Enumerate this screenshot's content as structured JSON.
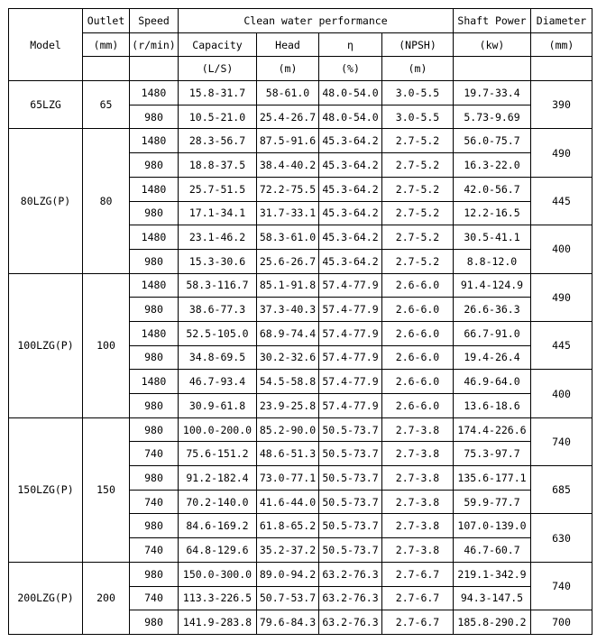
{
  "header": {
    "model": "Model",
    "outlet": "Outlet",
    "outlet_unit": "(mm)",
    "speed": "Speed",
    "speed_unit": "(r/min)",
    "performance": "Clean water performance",
    "capacity": "Capacity",
    "capacity_unit": "(L/S)",
    "head": "Head",
    "head_unit": "(m)",
    "eta": "η",
    "eta_unit": "(%)",
    "npsh": "(NPSH)",
    "npsh_unit": "(m)",
    "power": "Shaft Power",
    "power_unit": "(kw)",
    "diameter": "Diameter",
    "diameter_unit": "(mm)"
  },
  "models": [
    {
      "model": "65LZG",
      "outlet": "65",
      "groups": [
        {
          "diameter": "390",
          "rows": [
            [
              "1480",
              "15.8-31.7",
              "58-61.0",
              "48.0-54.0",
              "3.0-5.5",
              "19.7-33.4"
            ],
            [
              "980",
              "10.5-21.0",
              "25.4-26.7",
              "48.0-54.0",
              "3.0-5.5",
              "5.73-9.69"
            ]
          ]
        }
      ]
    },
    {
      "model": "80LZG(P)",
      "outlet": "80",
      "groups": [
        {
          "diameter": "490",
          "rows": [
            [
              "1480",
              "28.3-56.7",
              "87.5-91.6",
              "45.3-64.2",
              "2.7-5.2",
              "56.0-75.7"
            ],
            [
              "980",
              "18.8-37.5",
              "38.4-40.2",
              "45.3-64.2",
              "2.7-5.2",
              "16.3-22.0"
            ]
          ]
        },
        {
          "diameter": "445",
          "rows": [
            [
              "1480",
              "25.7-51.5",
              "72.2-75.5",
              "45.3-64.2",
              "2.7-5.2",
              "42.0-56.7"
            ],
            [
              "980",
              "17.1-34.1",
              "31.7-33.1",
              "45.3-64.2",
              "2.7-5.2",
              "12.2-16.5"
            ]
          ]
        },
        {
          "diameter": "400",
          "rows": [
            [
              "1480",
              "23.1-46.2",
              "58.3-61.0",
              "45.3-64.2",
              "2.7-5.2",
              "30.5-41.1"
            ],
            [
              "980",
              "15.3-30.6",
              "25.6-26.7",
              "45.3-64.2",
              "2.7-5.2",
              "8.8-12.0"
            ]
          ]
        }
      ]
    },
    {
      "model": "100LZG(P)",
      "outlet": "100",
      "groups": [
        {
          "diameter": "490",
          "rows": [
            [
              "1480",
              "58.3-116.7",
              "85.1-91.8",
              "57.4-77.9",
              "2.6-6.0",
              "91.4-124.9"
            ],
            [
              "980",
              "38.6-77.3",
              "37.3-40.3",
              "57.4-77.9",
              "2.6-6.0",
              "26.6-36.3"
            ]
          ]
        },
        {
          "diameter": "445",
          "rows": [
            [
              "1480",
              "52.5-105.0",
              "68.9-74.4",
              "57.4-77.9",
              "2.6-6.0",
              "66.7-91.0"
            ],
            [
              "980",
              "34.8-69.5",
              "30.2-32.6",
              "57.4-77.9",
              "2.6-6.0",
              "19.4-26.4"
            ]
          ]
        },
        {
          "diameter": "400",
          "rows": [
            [
              "1480",
              "46.7-93.4",
              "54.5-58.8",
              "57.4-77.9",
              "2.6-6.0",
              "46.9-64.0"
            ],
            [
              "980",
              "30.9-61.8",
              "23.9-25.8",
              "57.4-77.9",
              "2.6-6.0",
              "13.6-18.6"
            ]
          ]
        }
      ]
    },
    {
      "model": "150LZG(P)",
      "outlet": "150",
      "groups": [
        {
          "diameter": "740",
          "rows": [
            [
              "980",
              "100.0-200.0",
              "85.2-90.0",
              "50.5-73.7",
              "2.7-3.8",
              "174.4-226.6"
            ],
            [
              "740",
              "75.6-151.2",
              "48.6-51.3",
              "50.5-73.7",
              "2.7-3.8",
              "75.3-97.7"
            ]
          ]
        },
        {
          "diameter": "685",
          "rows": [
            [
              "980",
              "91.2-182.4",
              "73.0-77.1",
              "50.5-73.7",
              "2.7-3.8",
              "135.6-177.1"
            ],
            [
              "740",
              "70.2-140.0",
              "41.6-44.0",
              "50.5-73.7",
              "2.7-3.8",
              "59.9-77.7"
            ]
          ]
        },
        {
          "diameter": "630",
          "rows": [
            [
              "980",
              "84.6-169.2",
              "61.8-65.2",
              "50.5-73.7",
              "2.7-3.8",
              "107.0-139.0"
            ],
            [
              "740",
              "64.8-129.6",
              "35.2-37.2",
              "50.5-73.7",
              "2.7-3.8",
              "46.7-60.7"
            ]
          ]
        }
      ]
    },
    {
      "model": "200LZG(P)",
      "outlet": "200",
      "groups": [
        {
          "diameter": "740",
          "rows": [
            [
              "980",
              "150.0-300.0",
              "89.0-94.2",
              "63.2-76.3",
              "2.7-6.7",
              "219.1-342.9"
            ],
            [
              "740",
              "113.3-226.5",
              "50.7-53.7",
              "63.2-76.3",
              "2.7-6.7",
              "94.3-147.5"
            ]
          ]
        },
        {
          "diameter": "700",
          "rows": [
            [
              "980",
              "141.9-283.8",
              "79.6-84.3",
              "63.2-76.3",
              "2.7-6.7",
              "185.8-290.2"
            ]
          ]
        }
      ]
    }
  ]
}
